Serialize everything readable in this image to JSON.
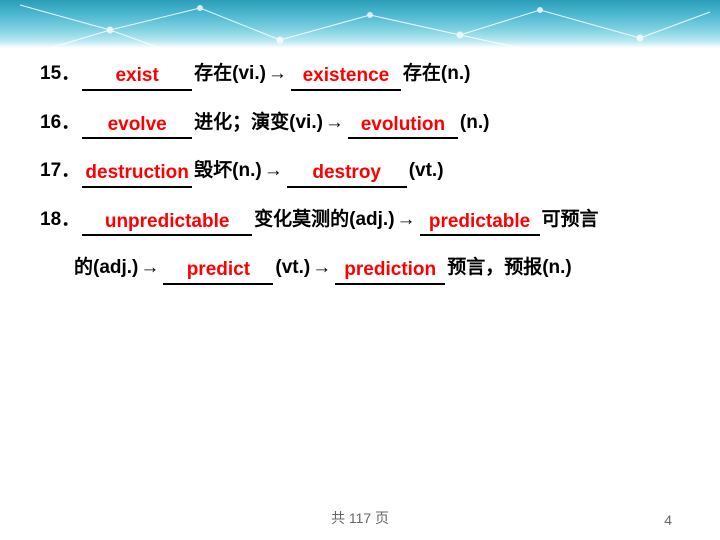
{
  "border": {
    "gradient_start": "#2a9db8",
    "gradient_end": "#ffffff",
    "line_color": "#ffffff",
    "dot_color": "#ffffff"
  },
  "answer_color": "#ff0000",
  "text_color": "#000000",
  "lines": [
    {
      "num": "15．",
      "parts": [
        {
          "answer": "exist",
          "width": "blank"
        },
        {
          "text": "存在(vi.)"
        },
        {
          "arrow": "→"
        },
        {
          "answer": "existence",
          "width": "blank"
        },
        {
          "text": "存在(n.)"
        }
      ]
    },
    {
      "num": "16．",
      "parts": [
        {
          "answer": "evolve",
          "width": "blank"
        },
        {
          "text": "进化；演变(vi.)"
        },
        {
          "arrow": "→"
        },
        {
          "answer": "evolution",
          "width": "blank"
        },
        {
          "text": "(n.)"
        }
      ]
    },
    {
      "num": "17．",
      "parts": [
        {
          "answer": "destruction",
          "width": "blank"
        },
        {
          "text": "毁坏(n.)"
        },
        {
          "arrow": "→"
        },
        {
          "answer": "destroy",
          "width": "blank-mid"
        },
        {
          "text": "(vt.)"
        }
      ]
    },
    {
      "num": "18．",
      "parts": [
        {
          "answer": "unpredictable",
          "width": "blank-wide"
        },
        {
          "text": "变化莫测的(adj.)"
        },
        {
          "arrow": "→"
        },
        {
          "answer": "predictable",
          "width": "blank-mid"
        },
        {
          "text": "可预言"
        }
      ]
    },
    {
      "indent": true,
      "parts": [
        {
          "text": "的(adj.)"
        },
        {
          "arrow": "→"
        },
        {
          "answer": "predict",
          "width": "blank"
        },
        {
          "text": "(vt.)"
        },
        {
          "arrow": "→"
        },
        {
          "answer": "prediction",
          "width": "blank"
        },
        {
          "text": "预言，预报(n.)"
        }
      ]
    }
  ],
  "footer": {
    "total_label_prefix": "共",
    "total_pages": "117",
    "total_label_suffix": "页",
    "page_num": "4"
  }
}
